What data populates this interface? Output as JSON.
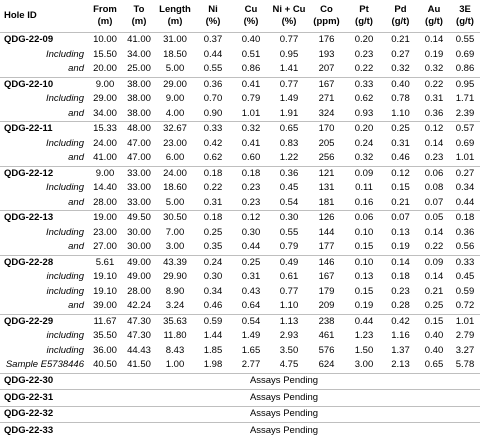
{
  "table": {
    "header": [
      [
        "Hole ID"
      ],
      [
        "From",
        "(m)"
      ],
      [
        "To",
        "(m)"
      ],
      [
        "Length",
        "(m)"
      ],
      [
        "Ni",
        "(%)"
      ],
      [
        "Cu",
        "(%)"
      ],
      [
        "Ni + Cu",
        "(%)"
      ],
      [
        "Co",
        "(ppm)"
      ],
      [
        "Pt",
        "(g/t)"
      ],
      [
        "Pd",
        "(g/t)"
      ],
      [
        "Au",
        "(g/t)"
      ],
      [
        "3E",
        "(g/t)"
      ]
    ],
    "groups": [
      {
        "hole": "QDG-22-09",
        "values": [
          "10.00",
          "41.00",
          "31.00",
          "0.37",
          "0.40",
          "0.77",
          "176",
          "0.20",
          "0.21",
          "0.14",
          "0.55"
        ],
        "subs": [
          [
            "Including",
            "15.50",
            "34.00",
            "18.50",
            "0.44",
            "0.51",
            "0.95",
            "193",
            "0.23",
            "0.27",
            "0.19",
            "0.69"
          ],
          [
            "and",
            "20.00",
            "25.00",
            "5.00",
            "0.55",
            "0.86",
            "1.41",
            "207",
            "0.22",
            "0.32",
            "0.32",
            "0.86"
          ]
        ]
      },
      {
        "hole": "QDG-22-10",
        "values": [
          "9.00",
          "38.00",
          "29.00",
          "0.36",
          "0.41",
          "0.77",
          "167",
          "0.33",
          "0.40",
          "0.22",
          "0.95"
        ],
        "subs": [
          [
            "Including",
            "29.00",
            "38.00",
            "9.00",
            "0.70",
            "0.79",
            "1.49",
            "271",
            "0.62",
            "0.78",
            "0.31",
            "1.71"
          ],
          [
            "and",
            "34.00",
            "38.00",
            "4.00",
            "0.90",
            "1.01",
            "1.91",
            "324",
            "0.93",
            "1.10",
            "0.36",
            "2.39"
          ]
        ]
      },
      {
        "hole": "QDG-22-11",
        "values": [
          "15.33",
          "48.00",
          "32.67",
          "0.33",
          "0.32",
          "0.65",
          "170",
          "0.20",
          "0.25",
          "0.12",
          "0.57"
        ],
        "subs": [
          [
            "Including",
            "24.00",
            "47.00",
            "23.00",
            "0.42",
            "0.41",
            "0.83",
            "205",
            "0.24",
            "0.31",
            "0.14",
            "0.69"
          ],
          [
            "and",
            "41.00",
            "47.00",
            "6.00",
            "0.62",
            "0.60",
            "1.22",
            "256",
            "0.32",
            "0.46",
            "0.23",
            "1.01"
          ]
        ]
      },
      {
        "hole": "QDG-22-12",
        "values": [
          "9.00",
          "33.00",
          "24.00",
          "0.18",
          "0.18",
          "0.36",
          "121",
          "0.09",
          "0.12",
          "0.06",
          "0.27"
        ],
        "subs": [
          [
            "Including",
            "14.40",
            "33.00",
            "18.60",
            "0.22",
            "0.23",
            "0.45",
            "131",
            "0.11",
            "0.15",
            "0.08",
            "0.34"
          ],
          [
            "and",
            "28.00",
            "33.00",
            "5.00",
            "0.31",
            "0.23",
            "0.54",
            "181",
            "0.16",
            "0.21",
            "0.07",
            "0.44"
          ]
        ]
      },
      {
        "hole": "QDG-22-13",
        "values": [
          "19.00",
          "49.50",
          "30.50",
          "0.18",
          "0.12",
          "0.30",
          "126",
          "0.06",
          "0.07",
          "0.05",
          "0.18"
        ],
        "subs": [
          [
            "Including",
            "23.00",
            "30.00",
            "7.00",
            "0.25",
            "0.30",
            "0.55",
            "144",
            "0.10",
            "0.13",
            "0.14",
            "0.36"
          ],
          [
            "and",
            "27.00",
            "30.00",
            "3.00",
            "0.35",
            "0.44",
            "0.79",
            "177",
            "0.15",
            "0.19",
            "0.22",
            "0.56"
          ]
        ]
      },
      {
        "hole": "QDG-22-28",
        "values": [
          "5.61",
          "49.00",
          "43.39",
          "0.24",
          "0.25",
          "0.49",
          "146",
          "0.10",
          "0.14",
          "0.09",
          "0.33"
        ],
        "subs": [
          [
            "including",
            "19.10",
            "49.00",
            "29.90",
            "0.30",
            "0.31",
            "0.61",
            "167",
            "0.13",
            "0.18",
            "0.14",
            "0.45"
          ],
          [
            "including",
            "19.10",
            "28.00",
            "8.90",
            "0.34",
            "0.43",
            "0.77",
            "179",
            "0.15",
            "0.23",
            "0.21",
            "0.59"
          ],
          [
            "and",
            "39.00",
            "42.24",
            "3.24",
            "0.46",
            "0.64",
            "1.10",
            "209",
            "0.19",
            "0.28",
            "0.25",
            "0.72"
          ]
        ]
      },
      {
        "hole": "QDG-22-29",
        "values": [
          "11.67",
          "47.30",
          "35.63",
          "0.59",
          "0.54",
          "1.13",
          "238",
          "0.44",
          "0.42",
          "0.15",
          "1.01"
        ],
        "subs": [
          [
            "including",
            "35.50",
            "47.30",
            "11.80",
            "1.44",
            "1.49",
            "2.93",
            "461",
            "1.23",
            "1.16",
            "0.40",
            "2.79"
          ],
          [
            "including",
            "36.00",
            "44.43",
            "8.43",
            "1.85",
            "1.65",
            "3.50",
            "576",
            "1.50",
            "1.37",
            "0.40",
            "3.27"
          ],
          [
            "Sample E5738446",
            "40.50",
            "41.50",
            "1.00",
            "1.98",
            "2.77",
            "4.75",
            "624",
            "3.00",
            "2.13",
            "0.65",
            "5.78"
          ]
        ]
      }
    ],
    "pending": [
      {
        "hole": "QDG-22-30",
        "note": "Assays Pending"
      },
      {
        "hole": "QDG-22-31",
        "note": "Assays Pending"
      },
      {
        "hole": "QDG-22-32",
        "note": "Assays Pending"
      },
      {
        "hole": "QDG-22-33",
        "note": "Assays Pending"
      }
    ]
  }
}
